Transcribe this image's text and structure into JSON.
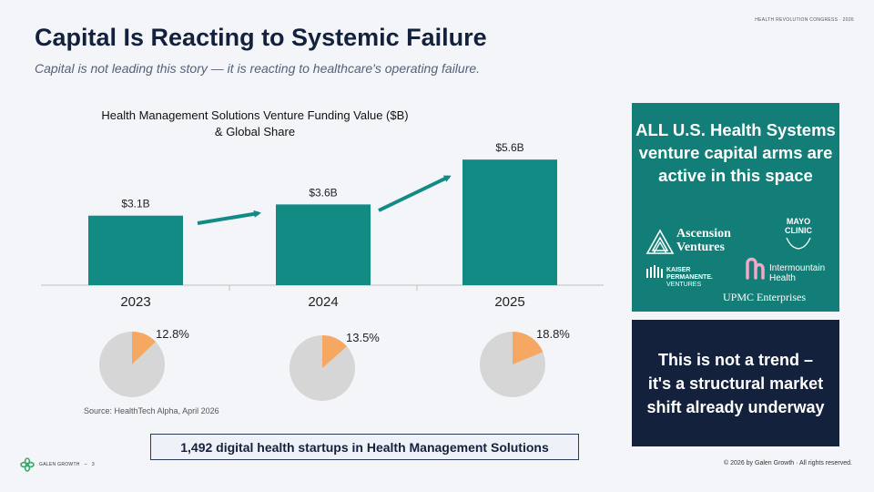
{
  "header": {
    "conference": "HEALTH REVOLUTION CONGRESS · 2026",
    "title": "Capital Is Reacting to Systemic Failure",
    "subtitle": "Capital is not leading this story — it is reacting to healthcare's operating failure."
  },
  "chart_data": [
    {
      "type": "bar",
      "title_line1": "Health Management Solutions Venture Funding Value ($B)",
      "title_line2": "& Global Share",
      "categories": [
        "2023",
        "2024",
        "2025"
      ],
      "values": [
        3.1,
        3.6,
        5.6
      ],
      "data_labels": [
        "$3.1B",
        "$3.6B",
        "$5.6B"
      ],
      "ylim": [
        0,
        6.5
      ],
      "color": "#138b85"
    },
    {
      "type": "pie",
      "title": "Global Share",
      "categories": [
        "2023",
        "2024",
        "2025"
      ],
      "shares": [
        12.8,
        13.5,
        18.8
      ],
      "labels": [
        "12.8%",
        "13.5%",
        "18.8%"
      ],
      "share_color": "#f6a862",
      "rest_color": "#d6d6d6"
    }
  ],
  "source": "Source: HealthTech Alpha, April 2026",
  "startups_box": "1,492 digital health startups in Health Management Solutions",
  "teal_panel": {
    "heading": "ALL U.S. Health Systems venture capital arms are active in this space",
    "logos": {
      "ascension_1": "Ascension",
      "ascension_2": "Ventures",
      "mayo_1": "MAYO",
      "mayo_2": "CLINIC",
      "kaiser_1": "KAISER",
      "kaiser_2": "PERMANENTE.",
      "kaiser_3": "VENTURES",
      "intermountain_1": "Intermountain",
      "intermountain_2": "Health",
      "upmc": "UPMC Enterprises"
    }
  },
  "navy_panel": "This is not a trend – it's a structural market shift already underway",
  "footer": {
    "brand": "GALEN GROWTH",
    "page": "3",
    "copyright": "© 2026 by Galen Growth · All rights reserved."
  },
  "colors": {
    "accent_teal": "#138b85",
    "panel_teal": "#137e78",
    "navy": "#14213d",
    "pie_share": "#f6a862"
  }
}
